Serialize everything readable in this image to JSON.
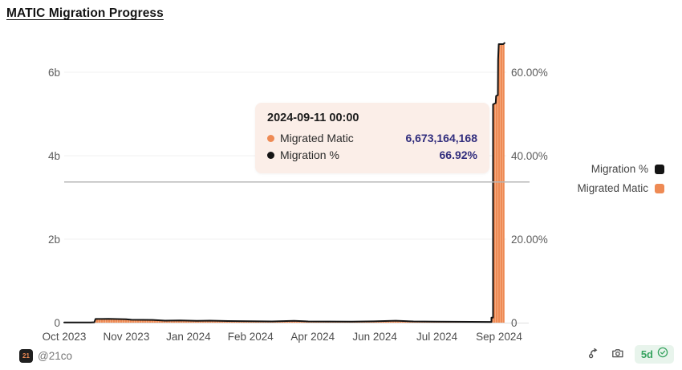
{
  "header": {
    "title": "MATIC Migration Progress"
  },
  "tooltip": {
    "timestamp": "2024-09-11 00:00",
    "rows": [
      {
        "label": "Migrated Matic",
        "value": "6,673,164,168",
        "marker_color": "#ee8a54"
      },
      {
        "label": "Migration %",
        "value": "66.92%",
        "marker_color": "#141414"
      }
    ]
  },
  "legend": [
    {
      "label": "Migration %",
      "color": "#141414"
    },
    {
      "label": "Migrated Matic",
      "color": "#ee8a54"
    }
  ],
  "footer": {
    "avatar_text": "21",
    "author": "@21co",
    "badge_text": "5d",
    "icons": [
      "fork-icon",
      "camera-icon",
      "check-circle-icon"
    ]
  },
  "chart_data": {
    "type": "bar",
    "subtype": "combo-bar-line-dual-axis",
    "title": "MATIC Migration Progress",
    "x_ticks": [
      "Oct 2023",
      "Nov 2023",
      "Jan 2024",
      "Feb 2024",
      "Apr 2024",
      "Jun 2024",
      "Jul 2024",
      "Sep 2024"
    ],
    "left_axis": {
      "tick_labels": [
        "0",
        "2b",
        "4b",
        "6b"
      ],
      "tick_values_billions": [
        0,
        2,
        4,
        6
      ],
      "max_billions": 6.77
    },
    "right_axis": {
      "tick_labels": [
        "0",
        "20.00%",
        "40.00%",
        "60.00%"
      ],
      "tick_values_pct": [
        0,
        20,
        40,
        60
      ],
      "max_pct": 67.7
    },
    "series": [
      {
        "name": "Migrated Matic",
        "type": "bar",
        "axis": "left",
        "color": "#ee8a54"
      },
      {
        "name": "Migration %",
        "type": "line",
        "axis": "right",
        "color": "#141414"
      }
    ],
    "pct_per_billion": 10.0284,
    "grid": true,
    "legend_position": "right",
    "highlight_point": {
      "date": "2024-09-11 00:00",
      "migrated_matic": 6673164168,
      "migration_pct": 66.92
    },
    "crosshair_value_billions": 3.37,
    "points_x_fraction_vs_billions": [
      [
        0.0,
        0.004
      ],
      [
        0.06,
        0.005
      ],
      [
        0.068,
        0.01
      ],
      [
        0.071,
        0.088
      ],
      [
        0.1,
        0.09
      ],
      [
        0.14,
        0.082
      ],
      [
        0.152,
        0.07
      ],
      [
        0.2,
        0.066
      ],
      [
        0.228,
        0.048
      ],
      [
        0.262,
        0.052
      ],
      [
        0.3,
        0.042
      ],
      [
        0.33,
        0.048
      ],
      [
        0.37,
        0.038
      ],
      [
        0.42,
        0.034
      ],
      [
        0.47,
        0.028
      ],
      [
        0.52,
        0.042
      ],
      [
        0.552,
        0.028
      ],
      [
        0.6,
        0.026
      ],
      [
        0.65,
        0.024
      ],
      [
        0.7,
        0.03
      ],
      [
        0.75,
        0.046
      ],
      [
        0.79,
        0.028
      ],
      [
        0.84,
        0.024
      ],
      [
        0.88,
        0.022
      ],
      [
        0.92,
        0.02
      ],
      [
        0.962,
        0.018
      ],
      [
        0.9665,
        0.018
      ],
      [
        0.9665,
        0.12
      ],
      [
        0.97,
        0.12
      ],
      [
        0.97,
        5.23
      ],
      [
        0.976,
        5.26
      ],
      [
        0.977,
        5.43
      ],
      [
        0.98,
        5.45
      ],
      [
        0.981,
        5.45
      ],
      [
        0.9815,
        6.3
      ],
      [
        0.983,
        6.673
      ],
      [
        0.993,
        6.673
      ],
      [
        0.996,
        6.7
      ]
    ]
  }
}
